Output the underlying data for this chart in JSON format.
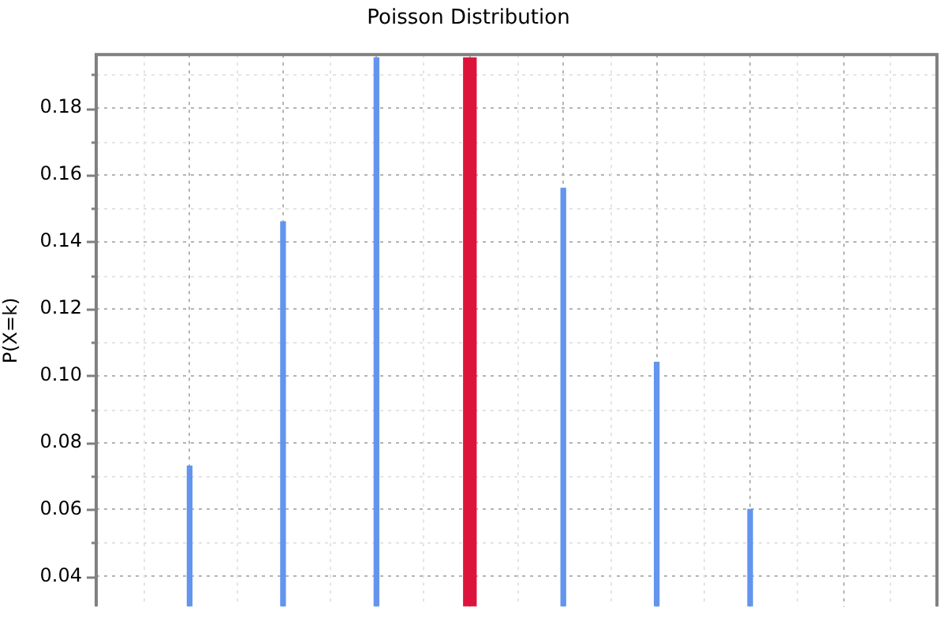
{
  "chart_data": {
    "type": "bar",
    "title": "Poisson Distribution",
    "ylabel": "P(X=k)",
    "categories": [
      null,
      null,
      null,
      null,
      null,
      null,
      null,
      null,
      null,
      null
    ],
    "series": [
      {
        "color": "#6495ed",
        "values": [
          null,
          0.073,
          0.146,
          0.195,
          null,
          0.156,
          0.104,
          0.06,
          null,
          null
        ]
      },
      {
        "color": "#dc143c",
        "values": [
          null,
          null,
          null,
          null,
          0.195,
          null,
          null,
          null,
          null,
          null
        ]
      }
    ],
    "ylim": [
      0.031,
      0.196
    ],
    "yticks": [
      0.04,
      0.06,
      0.08,
      {
        "value": 0.1,
        "label": "0.10"
      },
      0.12,
      0.14,
      0.16,
      0.18
    ],
    "grid": true,
    "tick_labels": "y"
  }
}
